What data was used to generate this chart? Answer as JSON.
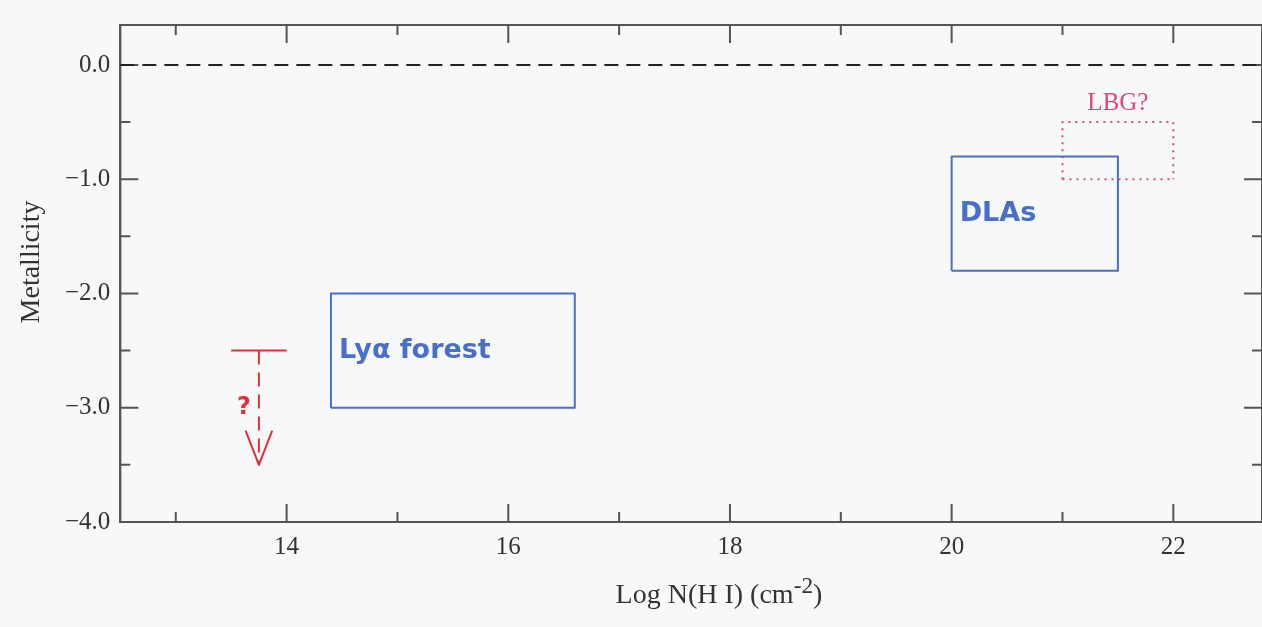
{
  "chart_data": {
    "type": "line",
    "xlabel": "Log N(H I) (cm$^{-2}$)",
    "ylabel": "Metallicity",
    "xlim": [
      12.5,
      22.8
    ],
    "ylim": [
      -4,
      0.35
    ],
    "xticks": [
      {
        "value": 13,
        "label": null
      },
      14,
      {
        "value": 15,
        "label": null
      },
      16,
      {
        "value": 17,
        "label": null
      },
      18,
      {
        "value": 19,
        "label": null
      },
      20,
      {
        "value": 21,
        "label": null
      },
      22
    ],
    "yticks": [
      {
        "value": -4,
        "label": "−4.0"
      },
      {
        "value": -3.5,
        "label": null
      },
      {
        "value": -3,
        "label": "−3.0"
      },
      {
        "value": -2.5,
        "label": null
      },
      {
        "value": -2,
        "label": "−2.0"
      },
      {
        "value": -1.5,
        "label": null
      },
      {
        "value": -1,
        "label": "−1.0"
      },
      {
        "value": -0.5,
        "label": null
      },
      {
        "value": 0,
        "label": "0.0"
      }
    ],
    "grid": false,
    "legend": false,
    "marker": "none",
    "ref_lines": [
      {
        "axis": "y",
        "value": 0,
        "color": "#222222",
        "line_style": "dashed"
      }
    ],
    "series": [
      {
        "name": "Lyα forest",
        "color": "#4a6fc9",
        "line_style": "solid",
        "x": [
          14.4,
          14.4,
          16.6,
          16.6
        ],
        "values": [
          -3,
          -2,
          -2,
          -3
        ]
      },
      {
        "color": "#4a6fc9",
        "line_style": "solid",
        "x": [
          14.4,
          16.6
        ],
        "values": [
          -3,
          -3
        ]
      },
      {
        "name": "DLAs",
        "color": "#4a6fc9",
        "line_style": "solid",
        "x": [
          20,
          20,
          21.5,
          21.5
        ],
        "values": [
          -1.8,
          -0.8,
          -0.8,
          -1.8
        ]
      },
      {
        "color": "#4a6fc9",
        "line_style": "solid",
        "x": [
          20,
          21.5
        ],
        "values": [
          -1.8,
          -1.8
        ]
      },
      {
        "name": "LBG?",
        "color": "#e0457a",
        "line_style": "dotted",
        "x": [
          21,
          21,
          22,
          22
        ],
        "values": [
          -1,
          -0.5,
          -0.5,
          -1
        ]
      },
      {
        "color": "#e0457a",
        "line_style": "dotted",
        "x": [
          21,
          22
        ],
        "values": [
          -1,
          -1
        ]
      },
      {
        "color": "#e0303a",
        "line_style": "solid",
        "x": [
          13.5,
          14
        ],
        "values": [
          -2.5,
          -2.5
        ]
      },
      {
        "name": "?",
        "color": "#e0303a",
        "line_style": "dashed",
        "x": [
          13.75,
          13.75
        ],
        "values": [
          -2.5,
          -3.5
        ]
      },
      {
        "color": "#e0303a",
        "line_style": "solid",
        "x": [
          13.63,
          13.75,
          13.87
        ],
        "values": [
          -3.2,
          -3.5,
          -3.2
        ]
      }
    ]
  }
}
